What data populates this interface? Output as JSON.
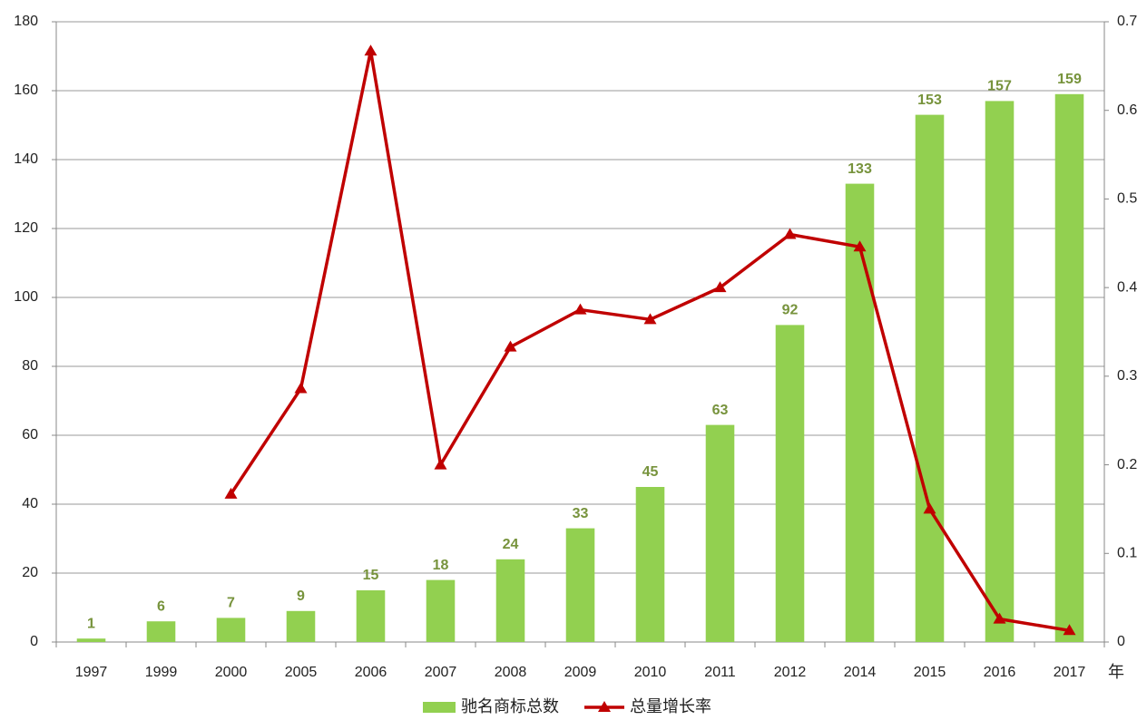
{
  "chart_data": {
    "type": "bar_line",
    "categories": [
      "1997",
      "1999",
      "2000",
      "2005",
      "2006",
      "2007",
      "2008",
      "2009",
      "2010",
      "2011",
      "2012",
      "2014",
      "2015",
      "2016",
      "2017"
    ],
    "x_label": "年",
    "series": [
      {
        "name": "驰名商标总数",
        "type": "bar",
        "color": "#92d050",
        "values": [
          1,
          6,
          7,
          9,
          15,
          18,
          24,
          33,
          45,
          63,
          92,
          133,
          153,
          157,
          159
        ]
      },
      {
        "name": "总量增长率",
        "type": "line",
        "axis": "y2",
        "color": "#c00000",
        "values": [
          null,
          null,
          0.167,
          0.286,
          0.667,
          0.2,
          0.333,
          0.375,
          0.364,
          0.4,
          0.46,
          0.446,
          0.15,
          0.026,
          0.013
        ]
      }
    ],
    "ylim": [
      0,
      180
    ],
    "yticks": [
      0,
      20,
      40,
      60,
      80,
      100,
      120,
      140,
      160,
      180
    ],
    "y2lim": [
      0,
      0.7
    ],
    "y2ticks": [
      0,
      0.1,
      0.2,
      0.3,
      0.4,
      0.5,
      0.6,
      0.7
    ],
    "grid": true,
    "legend": "bottom"
  }
}
